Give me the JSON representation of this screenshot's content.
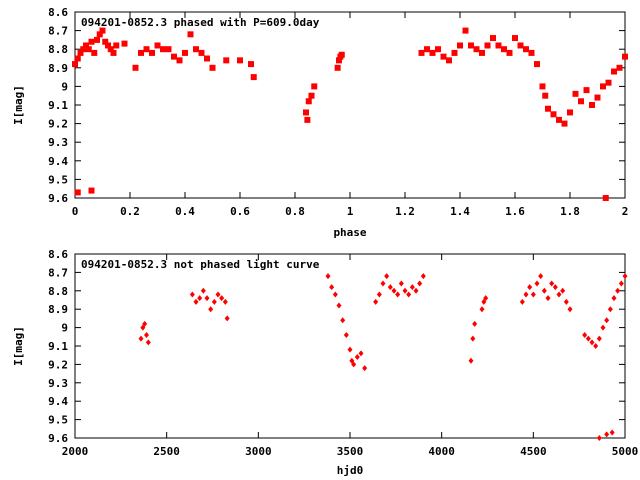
{
  "chart_data": [
    {
      "type": "scatter",
      "title": "094201-0852.3 phased with P=609.0day",
      "xlabel": "phase",
      "ylabel": "I[mag]",
      "xlim": [
        0,
        2
      ],
      "ylim": [
        9.6,
        8.6
      ],
      "x_ticks": [
        0,
        0.2,
        0.4,
        0.6,
        0.8,
        1,
        1.2,
        1.4,
        1.6,
        1.8,
        2
      ],
      "x_tick_labels": [
        "0",
        "0.2",
        "0.4",
        "0.6",
        "0.8",
        "1",
        "1.2",
        "1.4",
        "1.6",
        "1.8",
        "2"
      ],
      "y_ticks": [
        8.6,
        8.7,
        8.8,
        8.9,
        9.0,
        9.1,
        9.2,
        9.3,
        9.4,
        9.5,
        9.6
      ],
      "y_tick_labels": [
        "8.6",
        "8.7",
        "8.8",
        "8.9",
        "9",
        "9.1",
        "9.2",
        "9.3",
        "9.4",
        "9.5",
        "9.6"
      ],
      "grid": false,
      "marker_color": "#ff0000",
      "series": [
        {
          "x": [
            0.0,
            0.01,
            0.02,
            0.03,
            0.04,
            0.05,
            0.06,
            0.07,
            0.08,
            0.09,
            0.1,
            0.11,
            0.12,
            0.13,
            0.14,
            0.15,
            0.18,
            0.22,
            0.24,
            0.26,
            0.28,
            0.3,
            0.32,
            0.34,
            0.36,
            0.38,
            0.4,
            0.42,
            0.44,
            0.46,
            0.48,
            0.5,
            0.55,
            0.6,
            0.64,
            0.65,
            0.84,
            0.845,
            0.85,
            0.86,
            0.87,
            0.955,
            0.96,
            0.965,
            0.97,
            0.01,
            0.06,
            1.26,
            1.28,
            1.3,
            1.32,
            1.34,
            1.36,
            1.38,
            1.4,
            1.42,
            1.44,
            1.46,
            1.48,
            1.5,
            1.52,
            1.54,
            1.56,
            1.58,
            1.6,
            1.62,
            1.64,
            1.66,
            1.68,
            1.7,
            1.71,
            1.72,
            1.74,
            1.76,
            1.78,
            1.8,
            1.82,
            1.84,
            1.86,
            1.88,
            1.9,
            1.92,
            1.94,
            1.96,
            1.98,
            2.0,
            1.93
          ],
          "y": [
            8.88,
            8.85,
            8.82,
            8.8,
            8.78,
            8.8,
            8.76,
            8.82,
            8.75,
            8.72,
            8.7,
            8.76,
            8.78,
            8.8,
            8.82,
            8.78,
            8.77,
            8.9,
            8.82,
            8.8,
            8.82,
            8.78,
            8.8,
            8.8,
            8.84,
            8.86,
            8.82,
            8.72,
            8.8,
            8.82,
            8.85,
            8.9,
            8.86,
            8.86,
            8.88,
            8.95,
            9.14,
            9.18,
            9.08,
            9.05,
            9.0,
            8.9,
            8.86,
            8.84,
            8.83,
            9.57,
            9.56,
            8.82,
            8.8,
            8.82,
            8.8,
            8.84,
            8.86,
            8.82,
            8.78,
            8.7,
            8.78,
            8.8,
            8.82,
            8.78,
            8.74,
            8.78,
            8.8,
            8.82,
            8.74,
            8.78,
            8.8,
            8.82,
            8.88,
            9.0,
            9.05,
            9.12,
            9.15,
            9.18,
            9.2,
            9.14,
            9.04,
            9.08,
            9.02,
            9.1,
            9.06,
            9.0,
            8.98,
            8.92,
            8.9,
            8.84,
            9.6
          ]
        }
      ]
    },
    {
      "type": "scatter",
      "title": "094201-0852.3 not phased light curve",
      "xlabel": "hjd0",
      "ylabel": "I[mag]",
      "xlim": [
        2000,
        5000
      ],
      "ylim": [
        9.6,
        8.6
      ],
      "x_ticks": [
        2000,
        2500,
        3000,
        3500,
        4000,
        4500,
        5000
      ],
      "x_tick_labels": [
        "2000",
        "2500",
        "3000",
        "3500",
        "4000",
        "4500",
        "5000"
      ],
      "y_ticks": [
        8.6,
        8.7,
        8.8,
        8.9,
        9.0,
        9.1,
        9.2,
        9.3,
        9.4,
        9.5,
        9.6
      ],
      "y_tick_labels": [
        "8.6",
        "8.7",
        "8.8",
        "8.9",
        "9",
        "9.1",
        "9.2",
        "9.3",
        "9.4",
        "9.5",
        "9.6"
      ],
      "grid": false,
      "marker_color": "#ff0000",
      "series": [
        {
          "x": [
            2360,
            2370,
            2380,
            2390,
            2400,
            2640,
            2660,
            2680,
            2700,
            2720,
            2740,
            2760,
            2780,
            2800,
            2820,
            2830,
            3380,
            3400,
            3420,
            3440,
            3460,
            3480,
            3500,
            3510,
            3520,
            3540,
            3560,
            3580,
            3640,
            3660,
            3680,
            3700,
            3720,
            3740,
            3760,
            3780,
            3800,
            3820,
            3840,
            3860,
            3880,
            3900,
            4160,
            4170,
            4180,
            4220,
            4230,
            4240,
            4440,
            4460,
            4480,
            4500,
            4520,
            4540,
            4560,
            4580,
            4600,
            4620,
            4640,
            4660,
            4680,
            4700,
            4780,
            4800,
            4820,
            4840,
            4860,
            4880,
            4900,
            4920,
            4940,
            4960,
            4980,
            5000,
            4860,
            4900,
            4930
          ],
          "y": [
            9.06,
            9.0,
            8.98,
            9.04,
            9.08,
            8.82,
            8.86,
            8.84,
            8.8,
            8.84,
            8.9,
            8.86,
            8.82,
            8.84,
            8.86,
            8.95,
            8.72,
            8.78,
            8.82,
            8.88,
            8.96,
            9.04,
            9.12,
            9.18,
            9.2,
            9.16,
            9.14,
            9.22,
            8.86,
            8.82,
            8.76,
            8.72,
            8.78,
            8.8,
            8.82,
            8.76,
            8.8,
            8.82,
            8.78,
            8.8,
            8.76,
            8.72,
            9.18,
            9.06,
            8.98,
            8.9,
            8.86,
            8.84,
            8.86,
            8.82,
            8.78,
            8.82,
            8.76,
            8.72,
            8.8,
            8.84,
            8.76,
            8.78,
            8.82,
            8.8,
            8.86,
            8.9,
            9.04,
            9.06,
            9.08,
            9.1,
            9.06,
            9.0,
            8.96,
            8.9,
            8.84,
            8.8,
            8.76,
            8.72,
            9.6,
            9.58,
            9.57
          ]
        }
      ]
    }
  ]
}
